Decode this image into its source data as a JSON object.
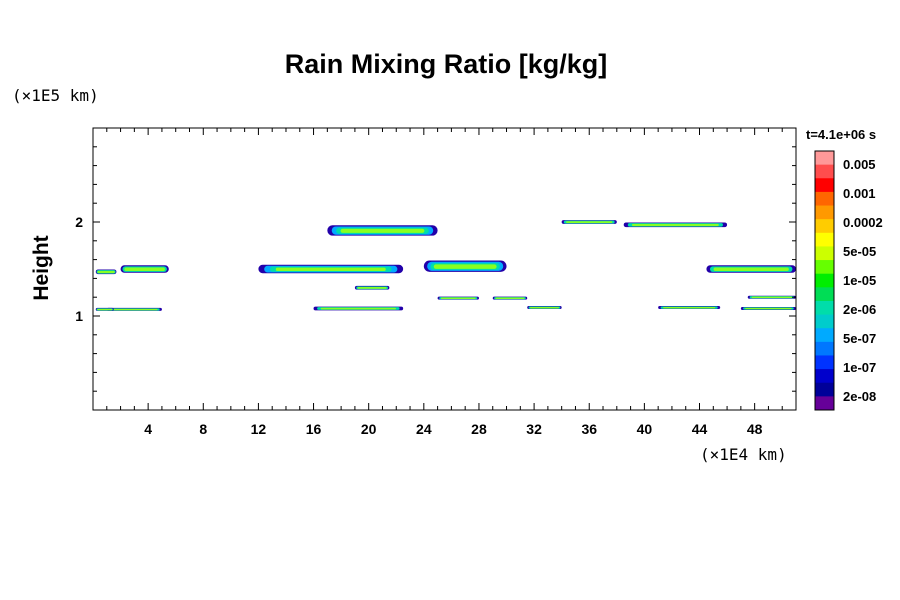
{
  "chart_data": {
    "type": "heatmap",
    "title": "Rain Mixing Ratio [kg/kg]",
    "xlabel": "",
    "ylabel": "Height",
    "x_unit_label": "(×1E4 km)",
    "y_unit_label": "(×1E5 km)",
    "time_label": "t=4.1e+06 s",
    "xlim": [
      0,
      51
    ],
    "ylim": [
      0,
      3
    ],
    "x_ticks": [
      4,
      8,
      12,
      16,
      20,
      24,
      28,
      32,
      36,
      40,
      44,
      48
    ],
    "y_ticks": [
      1,
      2
    ],
    "grid": false,
    "colorbar": {
      "labels": [
        "0.005",
        "0.001",
        "0.0002",
        "5e-05",
        "1e-05",
        "2e-06",
        "5e-07",
        "1e-07",
        "2e-08"
      ],
      "colors": [
        "#ff9999",
        "#ff4d4d",
        "#ff0000",
        "#ff6600",
        "#ff9900",
        "#ffcc00",
        "#ffff00",
        "#ccff00",
        "#66ff00",
        "#00ee00",
        "#00dd55",
        "#00ddaa",
        "#00cccc",
        "#00aaff",
        "#0077ff",
        "#0033ff",
        "#0000cc",
        "#000099",
        "#660099"
      ]
    },
    "bands": [
      {
        "x0": 0.2,
        "x1": 1.7,
        "y": 1.47,
        "h": 0.05
      },
      {
        "x0": 2.0,
        "x1": 5.5,
        "y": 1.5,
        "h": 0.08
      },
      {
        "x0": 12.0,
        "x1": 22.5,
        "y": 1.5,
        "h": 0.09
      },
      {
        "x0": 24.0,
        "x1": 30.0,
        "y": 1.53,
        "h": 0.12
      },
      {
        "x0": 17.0,
        "x1": 25.0,
        "y": 1.91,
        "h": 0.11
      },
      {
        "x0": 34.0,
        "x1": 38.0,
        "y": 2.0,
        "h": 0.04
      },
      {
        "x0": 38.5,
        "x1": 46.0,
        "y": 1.97,
        "h": 0.05
      },
      {
        "x0": 44.5,
        "x1": 51.0,
        "y": 1.5,
        "h": 0.08
      },
      {
        "x0": 16.0,
        "x1": 22.5,
        "y": 1.08,
        "h": 0.04
      },
      {
        "x0": 1.0,
        "x1": 5.0,
        "y": 1.07,
        "h": 0.03
      },
      {
        "x0": 0.2,
        "x1": 1.5,
        "y": 1.07,
        "h": 0.03
      },
      {
        "x0": 25.0,
        "x1": 28.0,
        "y": 1.19,
        "h": 0.03
      },
      {
        "x0": 29.0,
        "x1": 31.5,
        "y": 1.19,
        "h": 0.03
      },
      {
        "x0": 31.5,
        "x1": 34.0,
        "y": 1.09,
        "h": 0.03
      },
      {
        "x0": 41.0,
        "x1": 45.5,
        "y": 1.09,
        "h": 0.03
      },
      {
        "x0": 47.0,
        "x1": 51.0,
        "y": 1.08,
        "h": 0.03
      },
      {
        "x0": 19.0,
        "x1": 21.5,
        "y": 1.3,
        "h": 0.04
      },
      {
        "x0": 47.5,
        "x1": 51.0,
        "y": 1.2,
        "h": 0.03
      }
    ]
  }
}
